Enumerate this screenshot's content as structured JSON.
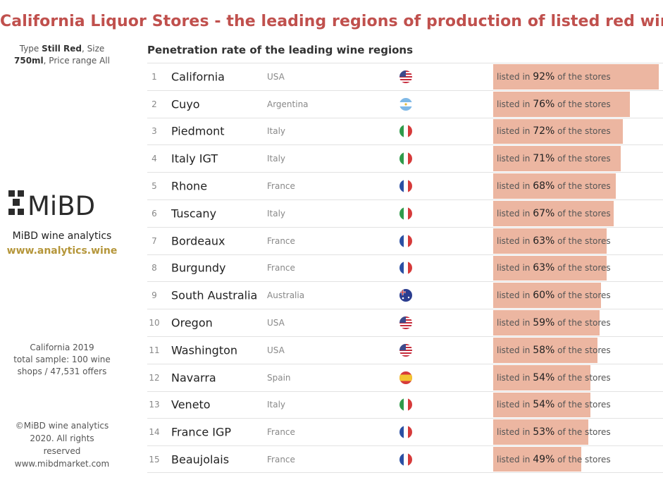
{
  "header": {
    "title": "California Liquor Stores - the leading regions of production of listed red wines",
    "subtitle": "Penetration rate of the leading wine regions"
  },
  "sidebar": {
    "filter_prefix_type": "Type ",
    "filter_type": "Still Red",
    "filter_size_prefix": ", Size",
    "filter_size": "750ml",
    "filter_price": ", Price range All",
    "logo_text": "MiBD",
    "brand": "MiBD wine analytics",
    "url": "www.analytics.wine",
    "sample_line1": "California 2019",
    "sample_line2": "total sample: 100 wine",
    "sample_line3": "shops  / 47,531 offers",
    "copyright_line1": "©MiBD wine analytics",
    "copyright_line2": "2020. All rights",
    "copyright_line3": "reserved",
    "copyright_line4": "www.mibdmarket.com"
  },
  "labels": {
    "listed_in": "listed in",
    "of_stores": "of the stores"
  },
  "colors": {
    "bar": "#ecb6a1",
    "title": "#c0504d",
    "url": "#b5963a"
  },
  "chart_data": {
    "type": "bar",
    "orientation": "horizontal",
    "title": "Penetration rate of the leading wine regions",
    "xlim": [
      0,
      100
    ],
    "unit": "%",
    "rows": [
      {
        "rank": "1",
        "region": "California",
        "country": "USA",
        "flag": "us-flag-icon",
        "value": 92,
        "pct": "92%"
      },
      {
        "rank": "2",
        "region": "Cuyo",
        "country": "Argentina",
        "flag": "argentina-flag-icon",
        "value": 76,
        "pct": "76%"
      },
      {
        "rank": "3",
        "region": "Piedmont",
        "country": "Italy",
        "flag": "italy-flag-icon",
        "value": 72,
        "pct": "72%"
      },
      {
        "rank": "4",
        "region": "Italy IGT",
        "country": "Italy",
        "flag": "italy-flag-icon",
        "value": 71,
        "pct": "71%"
      },
      {
        "rank": "5",
        "region": "Rhone",
        "country": "France",
        "flag": "france-flag-icon",
        "value": 68,
        "pct": "68%"
      },
      {
        "rank": "6",
        "region": "Tuscany",
        "country": "Italy",
        "flag": "italy-flag-icon",
        "value": 67,
        "pct": "67%"
      },
      {
        "rank": "7",
        "region": "Bordeaux",
        "country": "France",
        "flag": "france-flag-icon",
        "value": 63,
        "pct": "63%"
      },
      {
        "rank": "8",
        "region": "Burgundy",
        "country": "France",
        "flag": "france-flag-icon",
        "value": 63,
        "pct": "63%"
      },
      {
        "rank": "9",
        "region": "South Australia",
        "country": "Australia",
        "flag": "australia-flag-icon",
        "value": 60,
        "pct": "60%"
      },
      {
        "rank": "10",
        "region": "Oregon",
        "country": "USA",
        "flag": "us-flag-icon",
        "value": 59,
        "pct": "59%"
      },
      {
        "rank": "11",
        "region": "Washington",
        "country": "USA",
        "flag": "us-flag-icon",
        "value": 58,
        "pct": "58%"
      },
      {
        "rank": "12",
        "region": "Navarra",
        "country": "Spain",
        "flag": "spain-flag-icon",
        "value": 54,
        "pct": "54%"
      },
      {
        "rank": "13",
        "region": "Veneto",
        "country": "Italy",
        "flag": "italy-flag-icon",
        "value": 54,
        "pct": "54%"
      },
      {
        "rank": "14",
        "region": "France IGP",
        "country": "France",
        "flag": "france-flag-icon",
        "value": 53,
        "pct": "53%"
      },
      {
        "rank": "15",
        "region": "Beaujolais",
        "country": "France",
        "flag": "france-flag-icon",
        "value": 49,
        "pct": "49%"
      }
    ]
  }
}
